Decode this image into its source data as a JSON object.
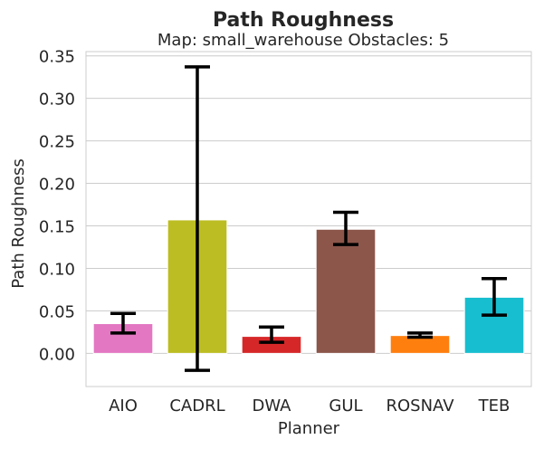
{
  "chart_data": {
    "type": "bar",
    "title": "Path Roughness",
    "subtitle": "Map: small_warehouse Obstacles: 5",
    "xlabel": "Planner",
    "ylabel": "Path Roughness",
    "ylim": [
      -0.039,
      0.355
    ],
    "yticks": [
      0.0,
      0.05,
      0.1,
      0.15,
      0.2,
      0.25,
      0.3,
      0.35
    ],
    "ytick_labels": [
      "0.00",
      "0.05",
      "0.10",
      "0.15",
      "0.20",
      "0.25",
      "0.30",
      "0.35"
    ],
    "categories": [
      "AIO",
      "CADRL",
      "DWA",
      "GUL",
      "ROSNAV",
      "TEB"
    ],
    "values": [
      0.035,
      0.157,
      0.02,
      0.146,
      0.021,
      0.066
    ],
    "error_low": [
      0.024,
      -0.02,
      0.013,
      0.128,
      0.019,
      0.045
    ],
    "error_high": [
      0.047,
      0.337,
      0.031,
      0.166,
      0.024,
      0.088
    ],
    "colors": [
      "#e377c2",
      "#bcbd22",
      "#d62728",
      "#8c564b",
      "#ff7f0e",
      "#17becf"
    ],
    "grid": "horizontal",
    "legend": "none"
  }
}
